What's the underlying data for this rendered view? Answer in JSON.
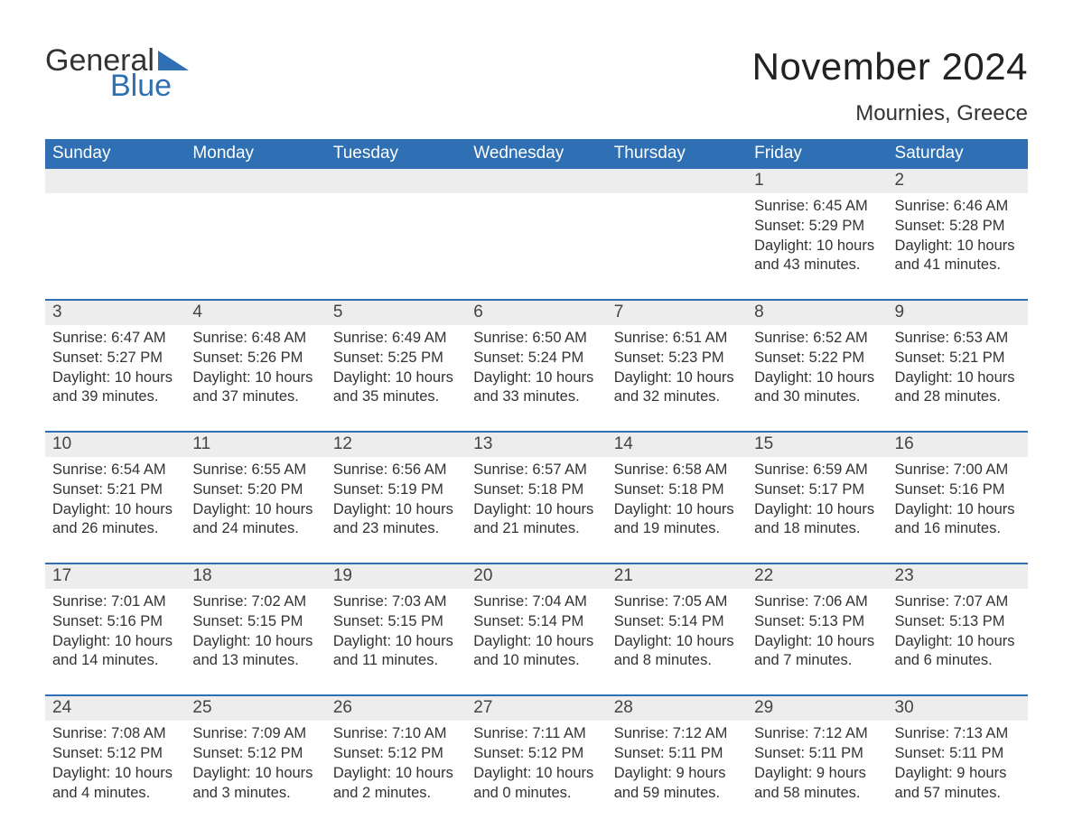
{
  "brand": {
    "word1": "General",
    "word2": "Blue",
    "accent_color": "#2f6fb3"
  },
  "title": "November 2024",
  "location": "Mournies, Greece",
  "colors": {
    "header_bg": "#2f6fb3",
    "header_text": "#ffffff",
    "daynum_bg": "#ededed",
    "text": "#333333",
    "page_bg": "#ffffff",
    "rule": "#2f6fb3"
  },
  "fonts": {
    "title_pt": 42,
    "location_pt": 24,
    "dow_pt": 19,
    "body_pt": 16.5
  },
  "dow": [
    "Sunday",
    "Monday",
    "Tuesday",
    "Wednesday",
    "Thursday",
    "Friday",
    "Saturday"
  ],
  "weeks": [
    [
      {
        "n": "",
        "empty": true
      },
      {
        "n": "",
        "empty": true
      },
      {
        "n": "",
        "empty": true
      },
      {
        "n": "",
        "empty": true
      },
      {
        "n": "",
        "empty": true
      },
      {
        "n": "1",
        "sr": "Sunrise: 6:45 AM",
        "ss": "Sunset: 5:29 PM",
        "dl": "Daylight: 10 hours and 43 minutes."
      },
      {
        "n": "2",
        "sr": "Sunrise: 6:46 AM",
        "ss": "Sunset: 5:28 PM",
        "dl": "Daylight: 10 hours and 41 minutes."
      }
    ],
    [
      {
        "n": "3",
        "sr": "Sunrise: 6:47 AM",
        "ss": "Sunset: 5:27 PM",
        "dl": "Daylight: 10 hours and 39 minutes."
      },
      {
        "n": "4",
        "sr": "Sunrise: 6:48 AM",
        "ss": "Sunset: 5:26 PM",
        "dl": "Daylight: 10 hours and 37 minutes."
      },
      {
        "n": "5",
        "sr": "Sunrise: 6:49 AM",
        "ss": "Sunset: 5:25 PM",
        "dl": "Daylight: 10 hours and 35 minutes."
      },
      {
        "n": "6",
        "sr": "Sunrise: 6:50 AM",
        "ss": "Sunset: 5:24 PM",
        "dl": "Daylight: 10 hours and 33 minutes."
      },
      {
        "n": "7",
        "sr": "Sunrise: 6:51 AM",
        "ss": "Sunset: 5:23 PM",
        "dl": "Daylight: 10 hours and 32 minutes."
      },
      {
        "n": "8",
        "sr": "Sunrise: 6:52 AM",
        "ss": "Sunset: 5:22 PM",
        "dl": "Daylight: 10 hours and 30 minutes."
      },
      {
        "n": "9",
        "sr": "Sunrise: 6:53 AM",
        "ss": "Sunset: 5:21 PM",
        "dl": "Daylight: 10 hours and 28 minutes."
      }
    ],
    [
      {
        "n": "10",
        "sr": "Sunrise: 6:54 AM",
        "ss": "Sunset: 5:21 PM",
        "dl": "Daylight: 10 hours and 26 minutes."
      },
      {
        "n": "11",
        "sr": "Sunrise: 6:55 AM",
        "ss": "Sunset: 5:20 PM",
        "dl": "Daylight: 10 hours and 24 minutes."
      },
      {
        "n": "12",
        "sr": "Sunrise: 6:56 AM",
        "ss": "Sunset: 5:19 PM",
        "dl": "Daylight: 10 hours and 23 minutes."
      },
      {
        "n": "13",
        "sr": "Sunrise: 6:57 AM",
        "ss": "Sunset: 5:18 PM",
        "dl": "Daylight: 10 hours and 21 minutes."
      },
      {
        "n": "14",
        "sr": "Sunrise: 6:58 AM",
        "ss": "Sunset: 5:18 PM",
        "dl": "Daylight: 10 hours and 19 minutes."
      },
      {
        "n": "15",
        "sr": "Sunrise: 6:59 AM",
        "ss": "Sunset: 5:17 PM",
        "dl": "Daylight: 10 hours and 18 minutes."
      },
      {
        "n": "16",
        "sr": "Sunrise: 7:00 AM",
        "ss": "Sunset: 5:16 PM",
        "dl": "Daylight: 10 hours and 16 minutes."
      }
    ],
    [
      {
        "n": "17",
        "sr": "Sunrise: 7:01 AM",
        "ss": "Sunset: 5:16 PM",
        "dl": "Daylight: 10 hours and 14 minutes."
      },
      {
        "n": "18",
        "sr": "Sunrise: 7:02 AM",
        "ss": "Sunset: 5:15 PM",
        "dl": "Daylight: 10 hours and 13 minutes."
      },
      {
        "n": "19",
        "sr": "Sunrise: 7:03 AM",
        "ss": "Sunset: 5:15 PM",
        "dl": "Daylight: 10 hours and 11 minutes."
      },
      {
        "n": "20",
        "sr": "Sunrise: 7:04 AM",
        "ss": "Sunset: 5:14 PM",
        "dl": "Daylight: 10 hours and 10 minutes."
      },
      {
        "n": "21",
        "sr": "Sunrise: 7:05 AM",
        "ss": "Sunset: 5:14 PM",
        "dl": "Daylight: 10 hours and 8 minutes."
      },
      {
        "n": "22",
        "sr": "Sunrise: 7:06 AM",
        "ss": "Sunset: 5:13 PM",
        "dl": "Daylight: 10 hours and 7 minutes."
      },
      {
        "n": "23",
        "sr": "Sunrise: 7:07 AM",
        "ss": "Sunset: 5:13 PM",
        "dl": "Daylight: 10 hours and 6 minutes."
      }
    ],
    [
      {
        "n": "24",
        "sr": "Sunrise: 7:08 AM",
        "ss": "Sunset: 5:12 PM",
        "dl": "Daylight: 10 hours and 4 minutes."
      },
      {
        "n": "25",
        "sr": "Sunrise: 7:09 AM",
        "ss": "Sunset: 5:12 PM",
        "dl": "Daylight: 10 hours and 3 minutes."
      },
      {
        "n": "26",
        "sr": "Sunrise: 7:10 AM",
        "ss": "Sunset: 5:12 PM",
        "dl": "Daylight: 10 hours and 2 minutes."
      },
      {
        "n": "27",
        "sr": "Sunrise: 7:11 AM",
        "ss": "Sunset: 5:12 PM",
        "dl": "Daylight: 10 hours and 0 minutes."
      },
      {
        "n": "28",
        "sr": "Sunrise: 7:12 AM",
        "ss": "Sunset: 5:11 PM",
        "dl": "Daylight: 9 hours and 59 minutes."
      },
      {
        "n": "29",
        "sr": "Sunrise: 7:12 AM",
        "ss": "Sunset: 5:11 PM",
        "dl": "Daylight: 9 hours and 58 minutes."
      },
      {
        "n": "30",
        "sr": "Sunrise: 7:13 AM",
        "ss": "Sunset: 5:11 PM",
        "dl": "Daylight: 9 hours and 57 minutes."
      }
    ]
  ]
}
